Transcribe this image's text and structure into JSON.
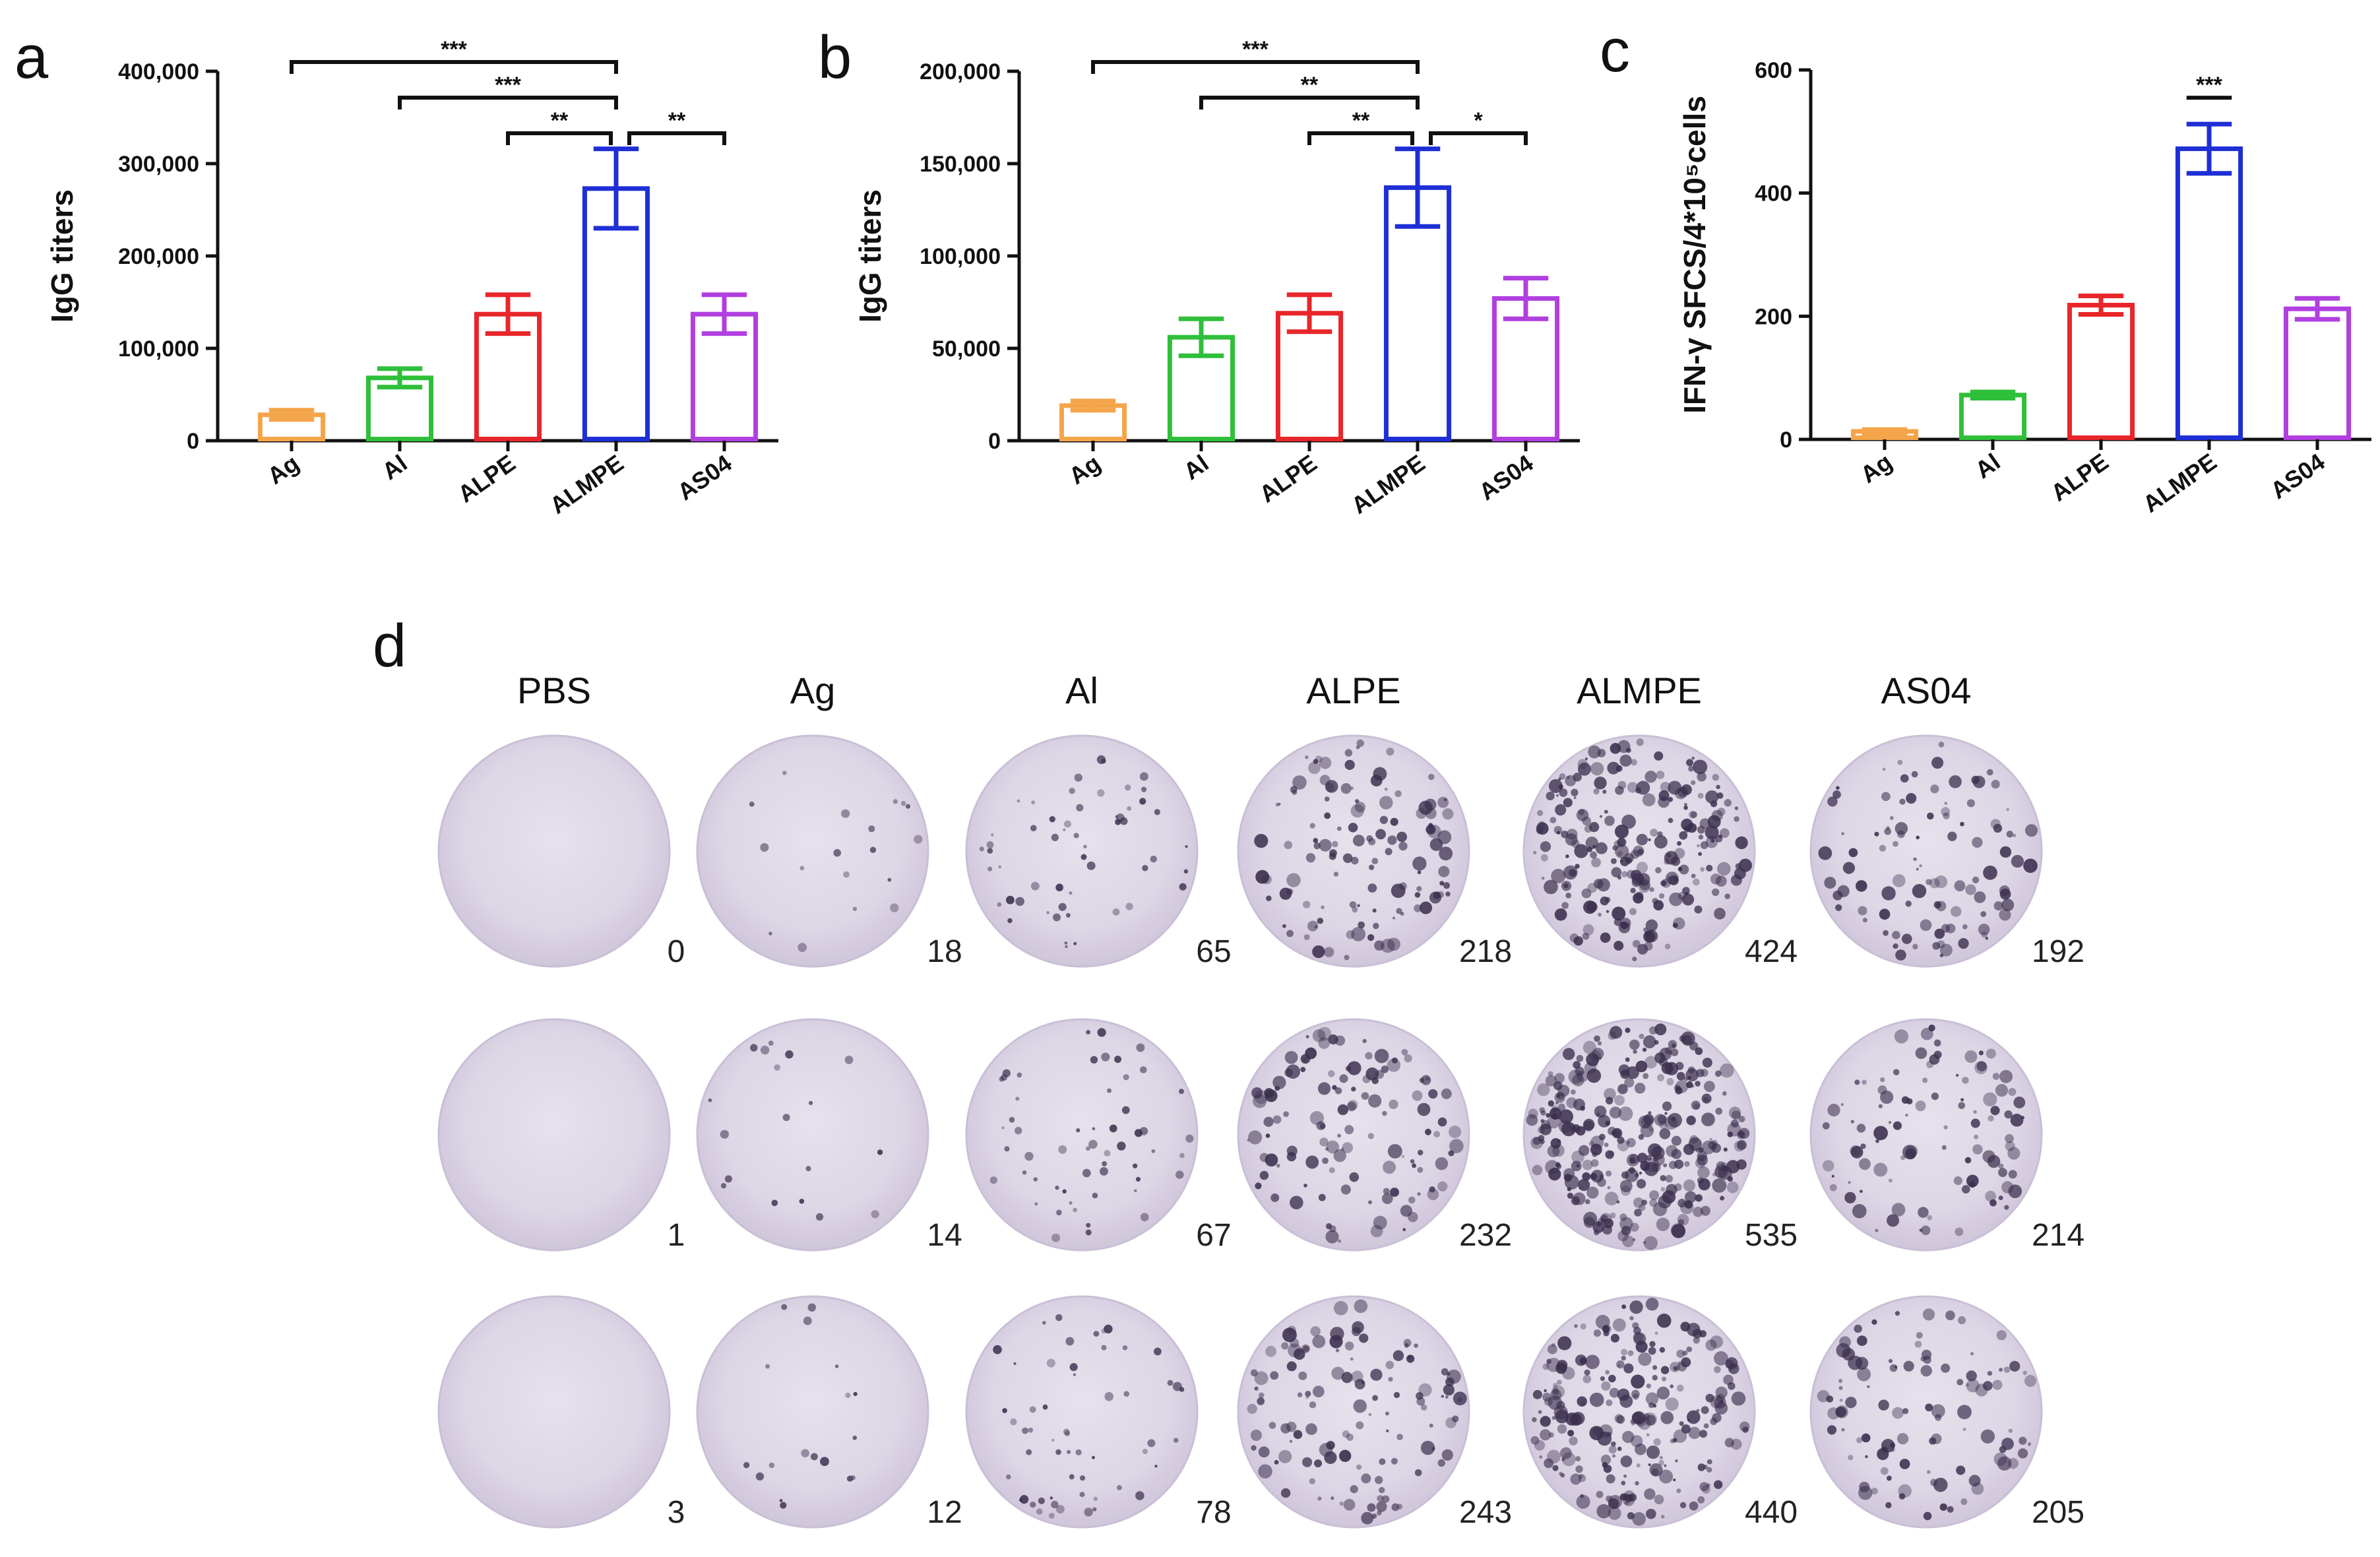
{
  "panel_labels": {
    "a": "a",
    "b": "b",
    "c": "c",
    "d": "d"
  },
  "colors": {
    "Ag": "#f4a54a",
    "Al": "#2fbf3a",
    "ALPE": "#e8262a",
    "ALMPE": "#1f2fd6",
    "AS04": "#b13fe0",
    "axis": "#111111"
  },
  "chart_data": [
    {
      "type": "bar",
      "panel": "a",
      "categories": [
        "Ag",
        "Al",
        "ALPE",
        "ALMPE",
        "AS04"
      ],
      "values": [
        28000,
        68000,
        137000,
        273000,
        137000
      ],
      "errors": [
        5000,
        10000,
        21000,
        43000,
        21000
      ],
      "ylabel": "IgG titers",
      "ylim": [
        0,
        400000
      ],
      "yticks": [
        "0",
        "100,000",
        "200,000",
        "300,000",
        "400,000"
      ],
      "ytick_values": [
        0,
        100000,
        200000,
        300000,
        400000
      ],
      "significance": [
        {
          "from": 0,
          "to": 3,
          "label": "***"
        },
        {
          "from": 1,
          "to": 3,
          "label": "***"
        },
        {
          "from": 2,
          "to": 3,
          "label": "**"
        },
        {
          "from": 3,
          "to": 4,
          "label": "**"
        }
      ]
    },
    {
      "type": "bar",
      "panel": "b",
      "categories": [
        "Ag",
        "Al",
        "ALPE",
        "ALMPE",
        "AS04"
      ],
      "values": [
        19000,
        56000,
        69000,
        137000,
        77000
      ],
      "errors": [
        2500,
        10000,
        10000,
        21000,
        11000
      ],
      "ylabel": "IgG titers",
      "ylim": [
        0,
        200000
      ],
      "yticks": [
        "0",
        "50,000",
        "100,000",
        "150,000",
        "200,000"
      ],
      "ytick_values": [
        0,
        50000,
        100000,
        150000,
        200000
      ],
      "significance": [
        {
          "from": 0,
          "to": 3,
          "label": "***"
        },
        {
          "from": 1,
          "to": 3,
          "label": "**"
        },
        {
          "from": 2,
          "to": 3,
          "label": "**"
        },
        {
          "from": 3,
          "to": 4,
          "label": "*"
        }
      ]
    },
    {
      "type": "bar",
      "panel": "c",
      "categories": [
        "Ag",
        "Al",
        "ALPE",
        "ALMPE",
        "AS04"
      ],
      "values": [
        13,
        72,
        218,
        472,
        212
      ],
      "errors": [
        3,
        5,
        15,
        40,
        17
      ],
      "ylabel": "IFN-γ SFCS/4*10⁵cells",
      "ylim": [
        0,
        600
      ],
      "yticks": [
        "0",
        "200",
        "400",
        "600"
      ],
      "ytick_values": [
        0,
        200,
        400,
        600
      ],
      "significance": [
        {
          "from": 3,
          "to": 3,
          "label": "***"
        }
      ]
    },
    {
      "type": "table",
      "panel": "d",
      "columns": [
        "PBS",
        "Ag",
        "Al",
        "ALPE",
        "ALMPE",
        "AS04"
      ],
      "rows": [
        {
          "counts": [
            "0",
            "18",
            "65",
            "218",
            "424",
            "192"
          ]
        },
        {
          "counts": [
            "1",
            "14",
            "67",
            "232",
            "535",
            "214"
          ]
        },
        {
          "counts": [
            "3",
            "12",
            "78",
            "243",
            "440",
            "205"
          ]
        }
      ]
    }
  ]
}
